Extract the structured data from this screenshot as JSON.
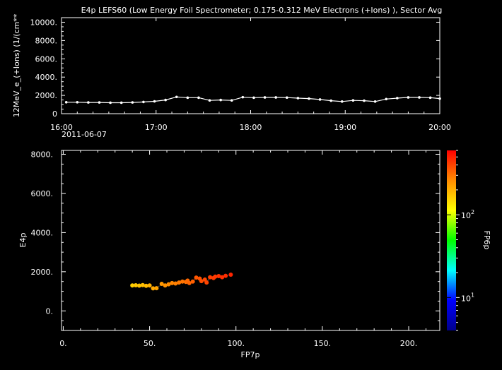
{
  "chart_data": [
    {
      "type": "line",
      "title": "E4p LEFS60 (Low Energy Foil Spectrometer; 0.175-0.312 MeV Electrons (+Ions) ), Sector Avg",
      "ylabel": "12MeV_e_(+Ions) (1/(cm**",
      "xlabel": "",
      "xlim": [
        "16:00",
        "20:00"
      ],
      "ylim": [
        0,
        10500
      ],
      "x_tick_labels": [
        "16:00",
        "17:00",
        "18:00",
        "19:00",
        "20:00"
      ],
      "x_date_label": "2011-06-07",
      "y_tick_labels": [
        "0",
        "2000.",
        "4000.",
        "6000.",
        "8000.",
        "10000."
      ],
      "grid": false,
      "series": [
        {
          "color": "#ffffff",
          "x": [
            "16:03",
            "16:10",
            "16:17",
            "16:24",
            "16:31",
            "16:38",
            "16:45",
            "16:52",
            "16:59",
            "17:06",
            "17:13",
            "17:20",
            "17:27",
            "17:34",
            "17:41",
            "17:48",
            "17:55",
            "18:02",
            "18:09",
            "18:16",
            "18:23",
            "18:30",
            "18:37",
            "18:44",
            "18:51",
            "18:58",
            "19:05",
            "19:12",
            "19:19",
            "19:26",
            "19:33",
            "19:40",
            "19:47",
            "19:54",
            "20:00"
          ],
          "values": [
            1250,
            1250,
            1230,
            1230,
            1200,
            1200,
            1230,
            1280,
            1350,
            1500,
            1830,
            1750,
            1750,
            1450,
            1500,
            1450,
            1800,
            1750,
            1780,
            1780,
            1760,
            1700,
            1650,
            1550,
            1420,
            1330,
            1450,
            1420,
            1330,
            1600,
            1700,
            1780,
            1780,
            1750,
            1650
          ]
        }
      ]
    },
    {
      "type": "scatter",
      "title": "",
      "xlabel": "FP7p",
      "ylabel": "E4p",
      "xlim": [
        -1,
        218
      ],
      "ylim": [
        -1000,
        8200
      ],
      "x_tick_labels": [
        "0.",
        "50.",
        "100.",
        "150.",
        "200."
      ],
      "y_tick_labels": [
        "0.",
        "2000.",
        "4000.",
        "6000.",
        "8000."
      ],
      "grid": false,
      "colorbar": {
        "label": "FP6p",
        "scale": "log",
        "tick_labels": [
          "10",
          "10"
        ],
        "tick_exponents": [
          "1",
          "2"
        ],
        "range": [
          4,
          600
        ],
        "colors": [
          "#00008b",
          "#0000ff",
          "#00ffff",
          "#00ff00",
          "#ffff00",
          "#ff8c00",
          "#ff0000"
        ]
      },
      "points": [
        {
          "x": 40,
          "y": 1300,
          "c": 160
        },
        {
          "x": 42,
          "y": 1310,
          "c": 170
        },
        {
          "x": 44,
          "y": 1290,
          "c": 175
        },
        {
          "x": 46,
          "y": 1320,
          "c": 180
        },
        {
          "x": 48,
          "y": 1280,
          "c": 185
        },
        {
          "x": 50,
          "y": 1300,
          "c": 200
        },
        {
          "x": 52,
          "y": 1150,
          "c": 210
        },
        {
          "x": 54,
          "y": 1160,
          "c": 220
        },
        {
          "x": 57,
          "y": 1380,
          "c": 240
        },
        {
          "x": 59,
          "y": 1300,
          "c": 250
        },
        {
          "x": 61,
          "y": 1360,
          "c": 260
        },
        {
          "x": 63,
          "y": 1420,
          "c": 270
        },
        {
          "x": 65,
          "y": 1400,
          "c": 280
        },
        {
          "x": 67,
          "y": 1450,
          "c": 290
        },
        {
          "x": 69,
          "y": 1500,
          "c": 300
        },
        {
          "x": 71,
          "y": 1480,
          "c": 310
        },
        {
          "x": 72,
          "y": 1550,
          "c": 320
        },
        {
          "x": 73,
          "y": 1420,
          "c": 330
        },
        {
          "x": 75,
          "y": 1500,
          "c": 340
        },
        {
          "x": 77,
          "y": 1700,
          "c": 360
        },
        {
          "x": 79,
          "y": 1650,
          "c": 370
        },
        {
          "x": 80,
          "y": 1520,
          "c": 380
        },
        {
          "x": 82,
          "y": 1600,
          "c": 390
        },
        {
          "x": 83,
          "y": 1450,
          "c": 400
        },
        {
          "x": 85,
          "y": 1720,
          "c": 410
        },
        {
          "x": 87,
          "y": 1680,
          "c": 420
        },
        {
          "x": 88,
          "y": 1750,
          "c": 430
        },
        {
          "x": 90,
          "y": 1780,
          "c": 440
        },
        {
          "x": 92,
          "y": 1720,
          "c": 450
        },
        {
          "x": 94,
          "y": 1790,
          "c": 460
        },
        {
          "x": 97,
          "y": 1850,
          "c": 480
        }
      ]
    }
  ]
}
